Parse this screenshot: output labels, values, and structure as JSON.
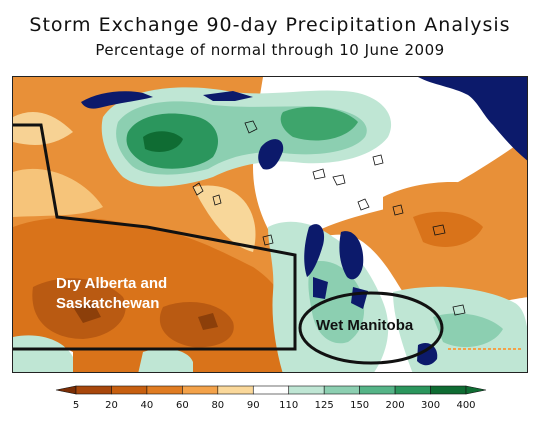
{
  "title": "Storm Exchange 90-day Precipitation Analysis",
  "subtitle": "Percentage of normal through 10 June 2009",
  "annotations": {
    "dry": [
      "Dry Alberta and",
      "Saskatchewan"
    ],
    "wet": "Wet Manitoba"
  },
  "legend": {
    "ticks": [
      "5",
      "20",
      "40",
      "60",
      "80",
      "90",
      "110",
      "125",
      "150",
      "200",
      "300",
      "400"
    ],
    "colors": [
      "#7a2e06",
      "#a8470b",
      "#c75f10",
      "#e07c22",
      "#f3a24a",
      "#fad89a",
      "#ffffff",
      "#bfe6d4",
      "#8ccfb1",
      "#55b487",
      "#2b965d",
      "#0f6c33"
    ]
  },
  "colors": {
    "water": "#0c1a6b",
    "dry": "#e07c22",
    "wet": "#2b965d"
  }
}
